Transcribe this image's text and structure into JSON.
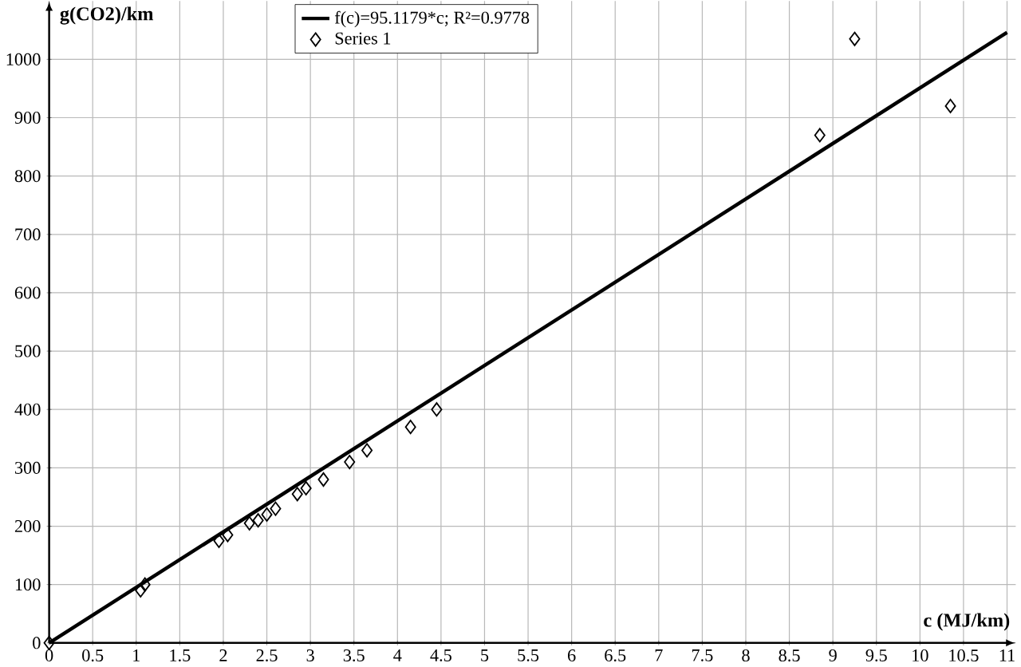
{
  "chart_data": {
    "type": "scatter",
    "xlabel": "c (MJ/km)",
    "ylabel": "g(CO2)/km",
    "xlim": [
      0,
      11.1
    ],
    "ylim": [
      0,
      1100
    ],
    "xticks": [
      0,
      0.5,
      1,
      1.5,
      2,
      2.5,
      3,
      3.5,
      4,
      4.5,
      5,
      5.5,
      6,
      6.5,
      7,
      7.5,
      8,
      8.5,
      9,
      9.5,
      10,
      10.5,
      11
    ],
    "yticks": [
      0,
      100,
      200,
      300,
      400,
      500,
      600,
      700,
      800,
      900,
      1000
    ],
    "grid": true,
    "legend": "top",
    "series": [
      {
        "name": "f(c)=95.1179*c; R²=0.9778",
        "type": "line",
        "color": "#000000",
        "line_style": "solid",
        "x": [
          0,
          11
        ],
        "values": [
          0,
          1046
        ]
      },
      {
        "name": "Series 1",
        "color": "#000000",
        "marker": "diamond",
        "x": [
          0,
          1.05,
          1.1,
          1.95,
          2.05,
          2.3,
          2.4,
          2.5,
          2.6,
          2.85,
          2.95,
          3.15,
          3.45,
          3.65,
          4.15,
          4.45,
          8.85,
          9.25,
          10.35
        ],
        "values": [
          0,
          90,
          100,
          175,
          185,
          205,
          210,
          220,
          230,
          255,
          265,
          280,
          310,
          330,
          370,
          400,
          870,
          1035,
          920
        ]
      }
    ]
  }
}
